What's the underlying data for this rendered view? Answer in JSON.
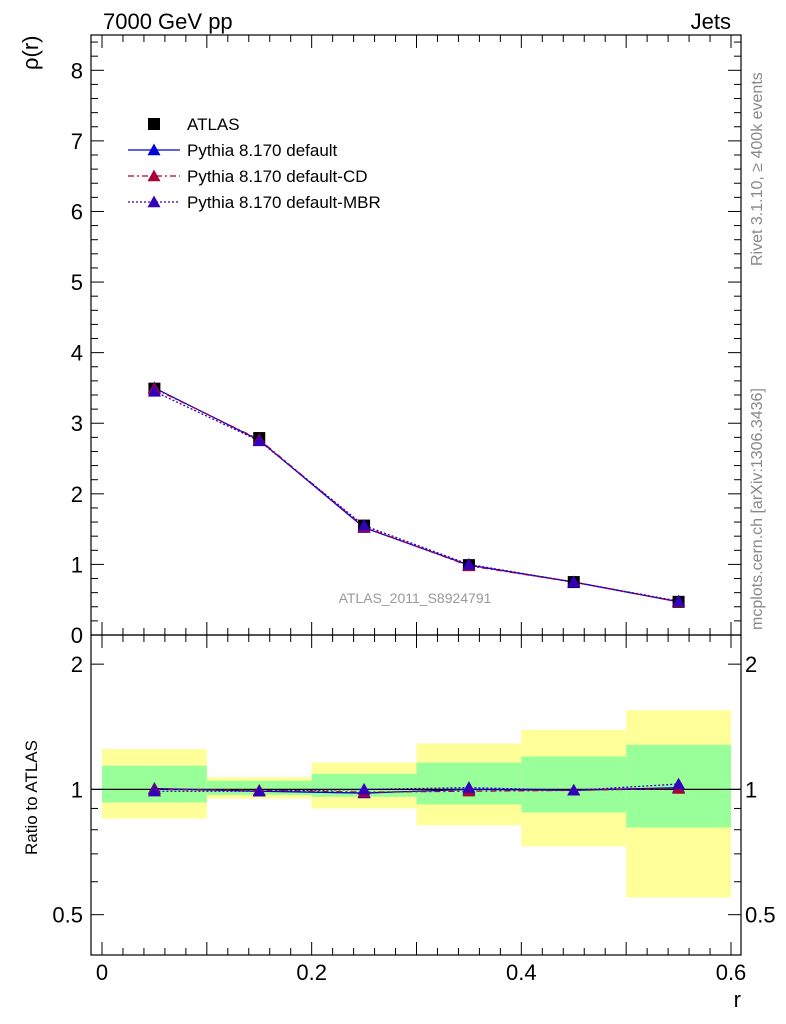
{
  "header": {
    "left": "7000 GeV pp",
    "right": "Jets"
  },
  "side_labels": {
    "rivet": "Rivet 3.1.10, ≥ 400k events",
    "mcplots": "mcplots.cern.ch [arXiv:1306.3436]"
  },
  "analysis_id": "ATLAS_2011_S8924791",
  "colors": {
    "atlas": "#000000",
    "default": "#0000dd",
    "cd": "#aa0033",
    "mbr": "#3300bb",
    "band_inner": "#99ff99",
    "band_outer": "#ffff99"
  },
  "chart_data": [
    {
      "type": "line",
      "ylabel": "ρ(r)",
      "xlim": [
        0,
        0.6
      ],
      "ylim": [
        0,
        8.5
      ],
      "y_ticks": [
        0,
        1,
        2,
        3,
        4,
        5,
        6,
        7,
        8
      ],
      "y_tick_labels": [
        "0",
        "1",
        "2",
        "3",
        "4",
        "5",
        "6",
        "7",
        "8"
      ],
      "x": [
        0.05,
        0.15,
        0.25,
        0.35,
        0.45,
        0.55
      ],
      "series": [
        {
          "name": "ATLAS",
          "values": [
            3.49,
            2.79,
            1.55,
            0.99,
            0.75,
            0.47
          ]
        },
        {
          "name": "Pythia 8.170 default",
          "values": [
            3.5,
            2.76,
            1.52,
            0.99,
            0.75,
            0.47
          ]
        },
        {
          "name": "Pythia 8.170 default-CD",
          "values": [
            3.49,
            2.77,
            1.53,
            0.98,
            0.75,
            0.47
          ]
        },
        {
          "name": "Pythia 8.170 default-MBR",
          "values": [
            3.45,
            2.75,
            1.55,
            1.0,
            0.75,
            0.48
          ]
        }
      ],
      "legend_position": "top-left"
    },
    {
      "type": "line",
      "xlabel": "r",
      "ylabel": "Ratio to ATLAS",
      "log_y": true,
      "xlim": [
        0,
        0.6
      ],
      "ylim": [
        0.4,
        2.35
      ],
      "x_ticks": [
        0,
        0.2,
        0.4,
        0.6
      ],
      "x_tick_labels": [
        "0",
        "0.2",
        "0.4",
        "0.6"
      ],
      "y_ticks": [
        0.5,
        1,
        2
      ],
      "y_tick_labels": [
        "0.5",
        "1",
        "2"
      ],
      "bin_edges": [
        0,
        0.1,
        0.2,
        0.3,
        0.4,
        0.5,
        0.6
      ],
      "band_inner": [
        [
          0.93,
          1.14
        ],
        [
          0.97,
          1.05
        ],
        [
          0.96,
          1.09
        ],
        [
          0.92,
          1.16
        ],
        [
          0.88,
          1.2
        ],
        [
          0.81,
          1.28
        ]
      ],
      "band_outer": [
        [
          0.85,
          1.25
        ],
        [
          0.95,
          1.07
        ],
        [
          0.9,
          1.16
        ],
        [
          0.82,
          1.29
        ],
        [
          0.73,
          1.39
        ],
        [
          0.55,
          1.55
        ]
      ],
      "x": [
        0.05,
        0.15,
        0.25,
        0.35,
        0.45,
        0.55
      ],
      "series": [
        {
          "name": "Pythia 8.170 default",
          "values": [
            1.005,
            0.99,
            0.98,
            1.0,
            0.995,
            1.01
          ]
        },
        {
          "name": "Pythia 8.170 default-CD",
          "values": [
            1.0,
            0.995,
            0.985,
            0.99,
            0.995,
            1.005
          ]
        },
        {
          "name": "Pythia 8.170 default-MBR",
          "values": [
            0.99,
            0.99,
            1.0,
            1.01,
            0.995,
            1.03
          ]
        }
      ]
    }
  ]
}
